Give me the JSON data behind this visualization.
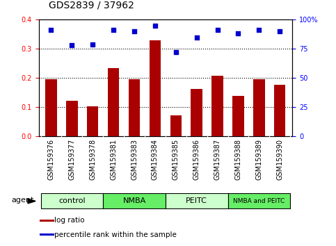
{
  "title": "GDS2839 / 37962",
  "categories": [
    "GSM159376",
    "GSM159377",
    "GSM159378",
    "GSM159381",
    "GSM159383",
    "GSM159384",
    "GSM159385",
    "GSM159386",
    "GSM159387",
    "GSM159388",
    "GSM159389",
    "GSM159390"
  ],
  "log_ratio": [
    0.195,
    0.122,
    0.104,
    0.235,
    0.197,
    0.33,
    0.073,
    0.162,
    0.207,
    0.138,
    0.197,
    0.178
  ],
  "percentile_rank": [
    91,
    78,
    79,
    91,
    90,
    95,
    72,
    85,
    91,
    88,
    91,
    90
  ],
  "bar_color": "#AA0000",
  "dot_color": "#0000CC",
  "ylim_left": [
    0,
    0.4
  ],
  "ylim_right": [
    0,
    100
  ],
  "yticks_left": [
    0,
    0.1,
    0.2,
    0.3,
    0.4
  ],
  "yticks_right": [
    0,
    25,
    50,
    75,
    100
  ],
  "ytick_right_labels": [
    "0",
    "25",
    "50",
    "75",
    "100%"
  ],
  "groups": [
    {
      "label": "control",
      "start": 0,
      "end": 3,
      "color": "#ccffcc"
    },
    {
      "label": "NMBA",
      "start": 3,
      "end": 6,
      "color": "#66ee66"
    },
    {
      "label": "PEITC",
      "start": 6,
      "end": 9,
      "color": "#ccffcc"
    },
    {
      "label": "NMBA and PEITC",
      "start": 9,
      "end": 12,
      "color": "#66ee66"
    }
  ],
  "legend_items": [
    {
      "label": "log ratio",
      "color": "#AA0000"
    },
    {
      "label": "percentile rank within the sample",
      "color": "#0000CC"
    }
  ],
  "agent_label": "agent",
  "background_color": "#ffffff",
  "tick_area_color": "#c8c8c8",
  "title_fontsize": 10,
  "tick_fontsize": 7,
  "label_fontsize": 8,
  "group_label_fontsize": 8,
  "small_group_label_fontsize": 6.5
}
